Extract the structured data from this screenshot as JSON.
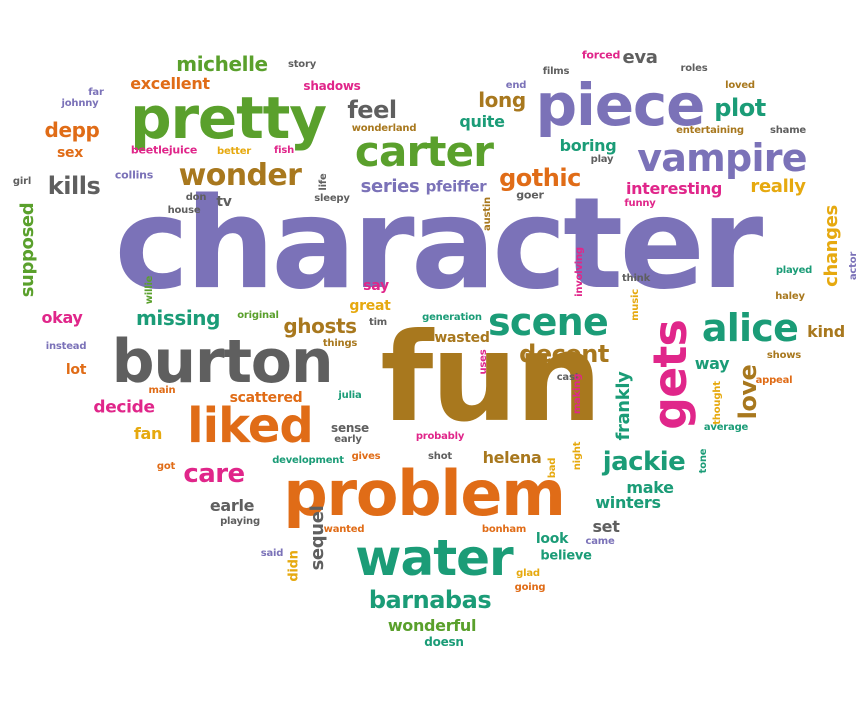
{
  "colors": {
    "purple": "#7b72b8",
    "green": "#5aa02c",
    "orange": "#e06c17",
    "brown": "#a8781e",
    "teal": "#1b9c77",
    "pink": "#e0268a",
    "gray": "#5f5f5f",
    "gold": "#e6a90f"
  },
  "words": [
    {
      "text": "character",
      "color": "purple"
    },
    {
      "text": "fun",
      "color": "brown"
    },
    {
      "text": "problem",
      "color": "orange"
    },
    {
      "text": "burton",
      "color": "gray"
    },
    {
      "text": "pretty",
      "color": "green"
    },
    {
      "text": "piece",
      "color": "purple"
    },
    {
      "text": "water",
      "color": "teal"
    },
    {
      "text": "liked",
      "color": "orange"
    },
    {
      "text": "gets",
      "color": "pink"
    },
    {
      "text": "carter",
      "color": "green"
    },
    {
      "text": "vampire",
      "color": "purple"
    },
    {
      "text": "alice",
      "color": "teal"
    },
    {
      "text": "scene",
      "color": "teal"
    },
    {
      "text": "wonder",
      "color": "brown"
    },
    {
      "text": "barnabas",
      "color": "teal"
    },
    {
      "text": "jackie",
      "color": "teal"
    },
    {
      "text": "decent",
      "color": "brown"
    },
    {
      "text": "gothic",
      "color": "orange"
    },
    {
      "text": "michelle",
      "color": "green"
    },
    {
      "text": "care",
      "color": "pink"
    },
    {
      "text": "missing",
      "color": "teal"
    },
    {
      "text": "feel",
      "color": "gray"
    },
    {
      "text": "plot",
      "color": "teal"
    },
    {
      "text": "long",
      "color": "brown"
    },
    {
      "text": "kills",
      "color": "gray"
    },
    {
      "text": "ghosts",
      "color": "brown"
    },
    {
      "text": "love",
      "color": "brown"
    },
    {
      "text": "wonderful",
      "color": "green"
    },
    {
      "text": "excellent",
      "color": "orange"
    },
    {
      "text": "depp",
      "color": "orange"
    },
    {
      "text": "series",
      "color": "purple"
    },
    {
      "text": "supposed",
      "color": "green"
    },
    {
      "text": "changes",
      "color": "gold"
    },
    {
      "text": "frankly",
      "color": "teal"
    },
    {
      "text": "sequel",
      "color": "gray"
    },
    {
      "text": "helena",
      "color": "brown"
    },
    {
      "text": "make",
      "color": "teal"
    },
    {
      "text": "winters",
      "color": "teal"
    },
    {
      "text": "boring",
      "color": "teal"
    },
    {
      "text": "interesting",
      "color": "pink"
    },
    {
      "text": "really",
      "color": "gold"
    },
    {
      "text": "eva",
      "color": "gray"
    },
    {
      "text": "quite",
      "color": "teal"
    },
    {
      "text": "pfeiffer",
      "color": "purple"
    },
    {
      "text": "decide",
      "color": "pink"
    },
    {
      "text": "okay",
      "color": "pink"
    },
    {
      "text": "way",
      "color": "teal"
    },
    {
      "text": "kind",
      "color": "brown"
    },
    {
      "text": "earle",
      "color": "gray"
    },
    {
      "text": "set",
      "color": "gray"
    },
    {
      "text": "fan",
      "color": "gold"
    },
    {
      "text": "scattered",
      "color": "orange"
    },
    {
      "text": "wasted",
      "color": "brown"
    },
    {
      "text": "say",
      "color": "pink"
    },
    {
      "text": "lot",
      "color": "orange"
    },
    {
      "text": "sex",
      "color": "orange"
    },
    {
      "text": "shadows",
      "color": "pink"
    },
    {
      "text": "tv",
      "color": "gray"
    },
    {
      "text": "sense",
      "color": "gray"
    },
    {
      "text": "look",
      "color": "teal"
    },
    {
      "text": "believe",
      "color": "teal"
    },
    {
      "text": "great",
      "color": "gold"
    },
    {
      "text": "didn",
      "color": "gold"
    },
    {
      "text": "doesn",
      "color": "teal"
    },
    {
      "text": "collins",
      "color": "purple"
    },
    {
      "text": "beetlejuice",
      "color": "pink"
    },
    {
      "text": "better",
      "color": "gold"
    },
    {
      "text": "fish",
      "color": "pink"
    },
    {
      "text": "wonderland",
      "color": "brown"
    },
    {
      "text": "forced",
      "color": "pink"
    },
    {
      "text": "roles",
      "color": "gray"
    },
    {
      "text": "loved",
      "color": "brown"
    },
    {
      "text": "films",
      "color": "gray"
    },
    {
      "text": "end",
      "color": "purple"
    },
    {
      "text": "story",
      "color": "gray"
    },
    {
      "text": "far",
      "color": "purple"
    },
    {
      "text": "johnny",
      "color": "purple"
    },
    {
      "text": "entertaining",
      "color": "brown"
    },
    {
      "text": "shame",
      "color": "gray"
    },
    {
      "text": "play",
      "color": "gray"
    },
    {
      "text": "girl",
      "color": "gray"
    },
    {
      "text": "don",
      "color": "gray"
    },
    {
      "text": "house",
      "color": "gray"
    },
    {
      "text": "life",
      "color": "gray"
    },
    {
      "text": "sleepy",
      "color": "gray"
    },
    {
      "text": "goer",
      "color": "gray"
    },
    {
      "text": "funny",
      "color": "pink"
    },
    {
      "text": "austin",
      "color": "brown"
    },
    {
      "text": "willie",
      "color": "green"
    },
    {
      "text": "original",
      "color": "green"
    },
    {
      "text": "tim",
      "color": "gray"
    },
    {
      "text": "things",
      "color": "brown"
    },
    {
      "text": "involving",
      "color": "pink"
    },
    {
      "text": "think",
      "color": "gray"
    },
    {
      "text": "music",
      "color": "gold"
    },
    {
      "text": "played",
      "color": "teal"
    },
    {
      "text": "haley",
      "color": "brown"
    },
    {
      "text": "actor",
      "color": "purple"
    },
    {
      "text": "instead",
      "color": "purple"
    },
    {
      "text": "generation",
      "color": "teal"
    },
    {
      "text": "uses",
      "color": "pink"
    },
    {
      "text": "cast",
      "color": "gray"
    },
    {
      "text": "making",
      "color": "pink"
    },
    {
      "text": "shows",
      "color": "brown"
    },
    {
      "text": "appeal",
      "color": "orange"
    },
    {
      "text": "thought",
      "color": "gold"
    },
    {
      "text": "average",
      "color": "teal"
    },
    {
      "text": "main",
      "color": "orange"
    },
    {
      "text": "julia",
      "color": "teal"
    },
    {
      "text": "early",
      "color": "gray"
    },
    {
      "text": "probably",
      "color": "pink"
    },
    {
      "text": "development",
      "color": "teal"
    },
    {
      "text": "gives",
      "color": "orange"
    },
    {
      "text": "shot",
      "color": "gray"
    },
    {
      "text": "night",
      "color": "gold"
    },
    {
      "text": "bad",
      "color": "gold"
    },
    {
      "text": "tone",
      "color": "teal"
    },
    {
      "text": "got",
      "color": "orange"
    },
    {
      "text": "playing",
      "color": "gray"
    },
    {
      "text": "wanted",
      "color": "orange"
    },
    {
      "text": "bonham",
      "color": "orange"
    },
    {
      "text": "came",
      "color": "purple"
    },
    {
      "text": "said",
      "color": "purple"
    },
    {
      "text": "glad",
      "color": "gold"
    },
    {
      "text": "going",
      "color": "orange"
    }
  ]
}
